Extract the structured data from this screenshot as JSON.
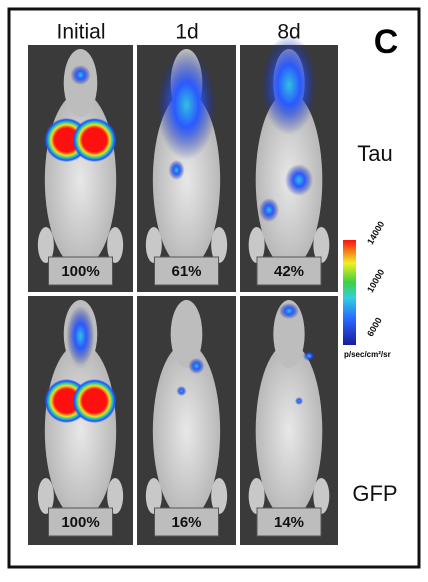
{
  "panel_label": "C",
  "columns": [
    "Initial",
    "1d",
    "8d"
  ],
  "rows": [
    {
      "label": "Tau",
      "values": [
        "100%",
        "61%",
        "42%"
      ]
    },
    {
      "label": "GFP",
      "values": [
        "100%",
        "16%",
        "14%"
      ]
    }
  ],
  "colorbar": {
    "ticks": [
      14000,
      10000,
      6000
    ],
    "unit": "p/sec/cm²/sr"
  }
}
